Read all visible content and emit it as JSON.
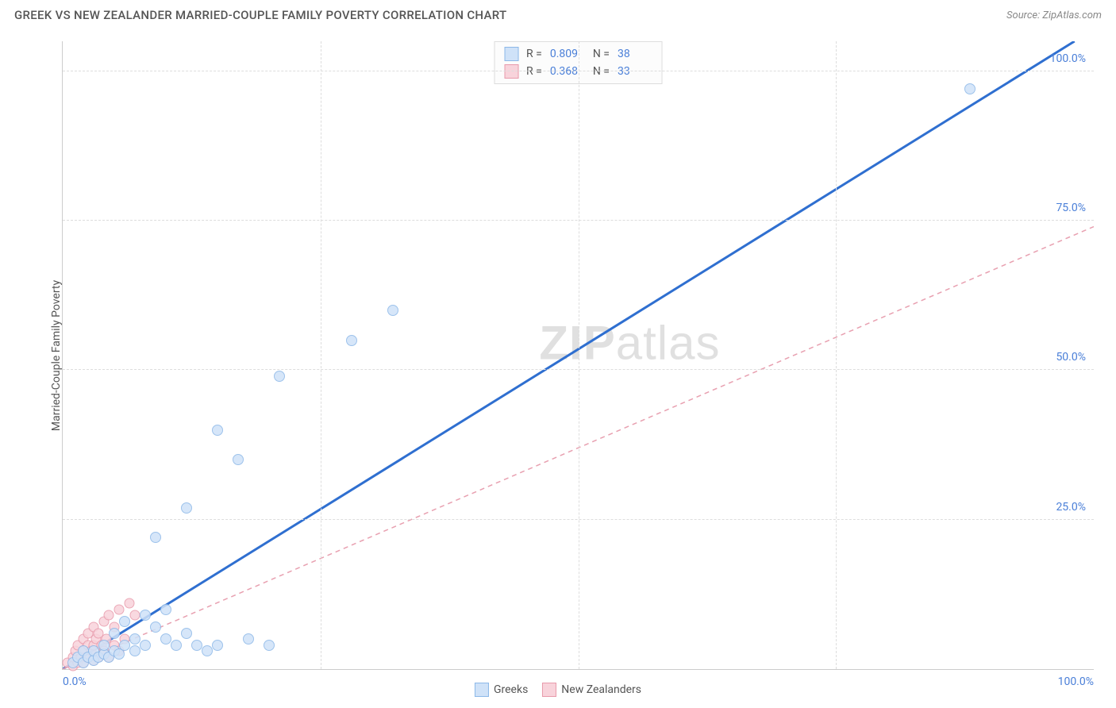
{
  "header": {
    "title": "GREEK VS NEW ZEALANDER MARRIED-COUPLE FAMILY POVERTY CORRELATION CHART",
    "source": "Source: ZipAtlas.com"
  },
  "watermark": {
    "prefix": "ZIP",
    "suffix": "atlas"
  },
  "chart": {
    "type": "scatter",
    "ylabel": "Married-Couple Family Poverty",
    "background_color": "#ffffff",
    "grid_color": "#dddddd",
    "axis_color": "#cccccc",
    "tick_color": "#4a7fd8",
    "label_fontsize": 14,
    "title_fontsize": 15,
    "xlim": [
      0,
      100
    ],
    "ylim": [
      0,
      105
    ],
    "x_ticks": [
      {
        "pos": 0,
        "label": "0.0%",
        "align": "left"
      },
      {
        "pos": 100,
        "label": "100.0%",
        "align": "right"
      }
    ],
    "y_ticks": [
      {
        "pos": 25,
        "label": "25.0%"
      },
      {
        "pos": 50,
        "label": "50.0%"
      },
      {
        "pos": 75,
        "label": "75.0%"
      },
      {
        "pos": 100,
        "label": "100.0%"
      }
    ],
    "x_gridlines": [
      25,
      50,
      75
    ],
    "y_gridlines": [
      25,
      50,
      75,
      100
    ],
    "series": [
      {
        "name": "Greeks",
        "color_fill": "#cfe2f8",
        "color_stroke": "#8cb8e8",
        "marker_size": 14,
        "marker_opacity": 0.85,
        "R": "0.809",
        "N": "38",
        "trend": {
          "slope": 1.07,
          "intercept": 0,
          "color": "#2f6fd0",
          "width": 3,
          "dash": "none"
        },
        "points": [
          [
            1,
            1
          ],
          [
            1.5,
            2
          ],
          [
            2,
            1
          ],
          [
            2,
            3
          ],
          [
            2.5,
            2
          ],
          [
            3,
            1.5
          ],
          [
            3,
            3
          ],
          [
            3.5,
            2
          ],
          [
            4,
            2.5
          ],
          [
            4,
            4
          ],
          [
            4.5,
            2
          ],
          [
            5,
            3
          ],
          [
            5,
            6
          ],
          [
            5.5,
            2.5
          ],
          [
            6,
            4
          ],
          [
            6,
            8
          ],
          [
            7,
            5
          ],
          [
            7,
            3
          ],
          [
            8,
            4
          ],
          [
            8,
            9
          ],
          [
            9,
            7
          ],
          [
            10,
            5
          ],
          [
            10,
            10
          ],
          [
            11,
            4
          ],
          [
            12,
            6
          ],
          [
            13,
            4
          ],
          [
            14,
            3
          ],
          [
            15,
            4
          ],
          [
            18,
            5
          ],
          [
            20,
            4
          ],
          [
            9,
            22
          ],
          [
            12,
            27
          ],
          [
            17,
            35
          ],
          [
            15,
            40
          ],
          [
            21,
            49
          ],
          [
            28,
            55
          ],
          [
            32,
            60
          ],
          [
            88,
            97
          ]
        ]
      },
      {
        "name": "New Zealanders",
        "color_fill": "#f8d3db",
        "color_stroke": "#e89aab",
        "marker_size": 13,
        "marker_opacity": 0.85,
        "R": "0.368",
        "N": "33",
        "trend": {
          "slope": 0.74,
          "intercept": 0,
          "color": "#e8a0b0",
          "width": 1.5,
          "dash": "6,5"
        },
        "points": [
          [
            0.5,
            1
          ],
          [
            1,
            0.5
          ],
          [
            1,
            2
          ],
          [
            1.2,
            3
          ],
          [
            1.5,
            1
          ],
          [
            1.5,
            4
          ],
          [
            1.8,
            2
          ],
          [
            2,
            1
          ],
          [
            2,
            3
          ],
          [
            2,
            5
          ],
          [
            2.3,
            2
          ],
          [
            2.5,
            4
          ],
          [
            2.5,
            6
          ],
          [
            2.8,
            3
          ],
          [
            3,
            1.5
          ],
          [
            3,
            4
          ],
          [
            3,
            7
          ],
          [
            3.2,
            5
          ],
          [
            3.5,
            2
          ],
          [
            3.5,
            6
          ],
          [
            3.8,
            4
          ],
          [
            4,
            3
          ],
          [
            4,
            8
          ],
          [
            4.2,
            5
          ],
          [
            4.5,
            2
          ],
          [
            4.5,
            9
          ],
          [
            5,
            4
          ],
          [
            5,
            7
          ],
          [
            5.5,
            3
          ],
          [
            5.5,
            10
          ],
          [
            6,
            5
          ],
          [
            6.5,
            11
          ],
          [
            7,
            9
          ]
        ]
      }
    ],
    "legend": {
      "items": [
        {
          "label": "Greeks",
          "fill": "#cfe2f8",
          "stroke": "#8cb8e8"
        },
        {
          "label": "New Zealanders",
          "fill": "#f8d3db",
          "stroke": "#e89aab"
        }
      ]
    }
  }
}
